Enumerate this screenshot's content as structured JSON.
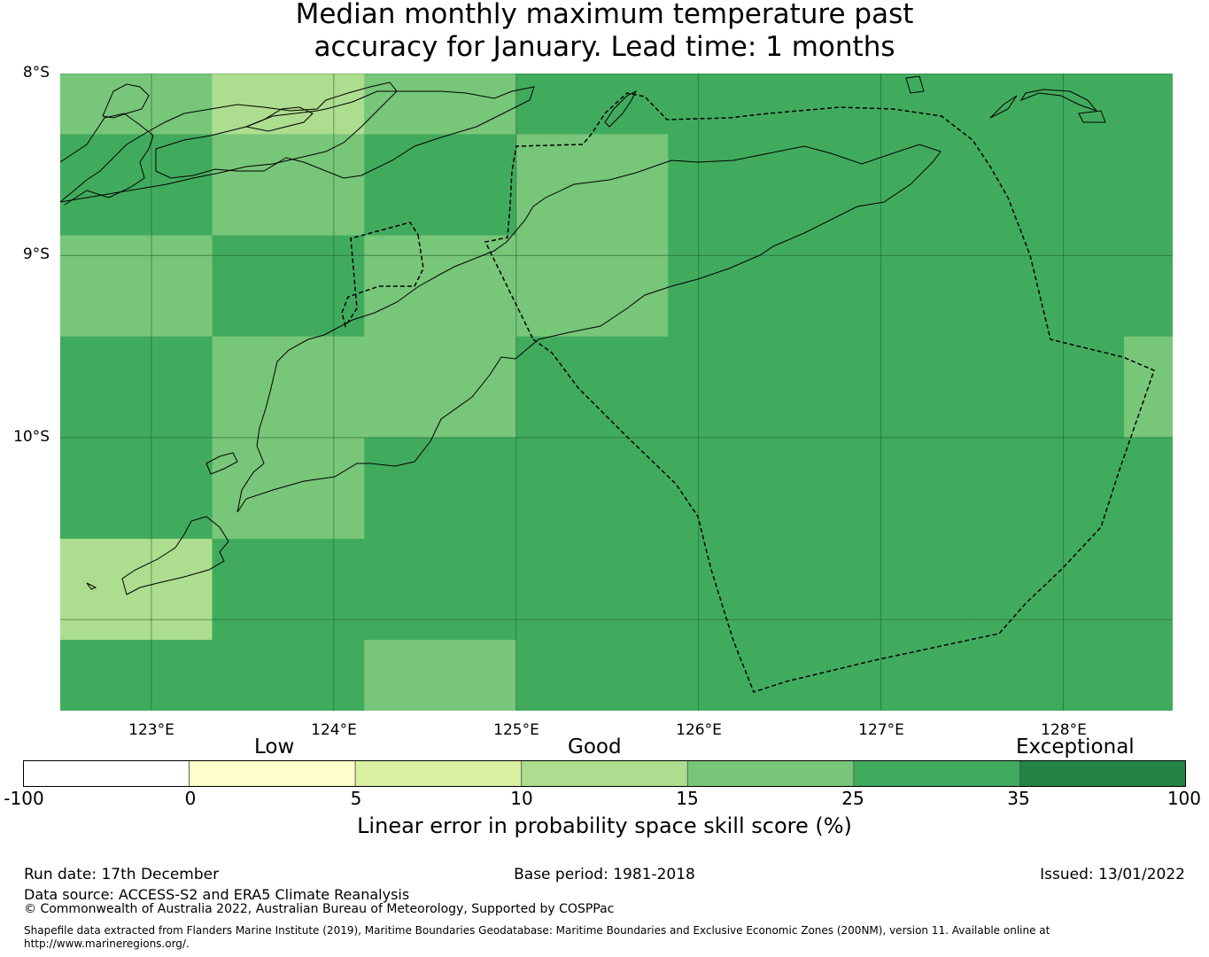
{
  "title": {
    "line1": "Median monthly maximum temperature past",
    "line2": "accuracy for January. Lead time: 1 months"
  },
  "map": {
    "lat_labels": [
      "8°S",
      "9°S",
      "10°S"
    ],
    "lon_labels": [
      "123°E",
      "124°E",
      "125°E",
      "126°E",
      "127°E",
      "128°E"
    ],
    "extent": {
      "lon_min": 122.5,
      "lon_max": 128.6,
      "lat_min": -11.5,
      "lat_max": -8.0
    },
    "grid_cell_deg": {
      "lon": 0.833,
      "lat": 0.556
    },
    "cell_lon_edges": [
      122.5,
      123.333,
      124.167,
      125.0,
      125.833,
      126.667,
      127.5,
      128.333,
      128.6
    ],
    "cell_lat_edges": [
      -8.0,
      -8.333,
      -8.889,
      -9.444,
      -10.0,
      -10.556,
      -11.111,
      -11.5
    ],
    "cell_classes": [
      [
        4,
        3,
        4,
        5,
        5,
        5,
        5,
        5
      ],
      [
        5,
        4,
        5,
        4,
        5,
        5,
        5,
        5
      ],
      [
        4,
        5,
        4,
        4,
        5,
        5,
        5,
        5
      ],
      [
        5,
        4,
        4,
        5,
        5,
        5,
        5,
        4
      ],
      [
        5,
        4,
        5,
        5,
        5,
        5,
        5,
        5
      ],
      [
        3,
        5,
        5,
        5,
        5,
        5,
        5,
        5
      ],
      [
        5,
        5,
        4,
        5,
        5,
        5,
        5,
        5
      ]
    ]
  },
  "colorbar": {
    "category_labels": [
      "Low",
      "Good",
      "Exceptional"
    ],
    "ticks": [
      "-100",
      "0",
      "5",
      "10",
      "15",
      "25",
      "35",
      "100"
    ],
    "colors": [
      "#ffffff",
      "#ffffcc",
      "#d9f0a3",
      "#addd8e",
      "#78c679",
      "#41ab5d",
      "#238443"
    ],
    "title": "Linear error in probability space skill score (%)"
  },
  "footer": {
    "run_date": "Run date: 17th December",
    "base_period": "Base period: 1981-2018",
    "issued": "Issued: 13/01/2022",
    "data_source": "Data source: ACCESS-S2 and ERA5 Climate Reanalysis",
    "copyright": "© Commonwealth of Australia 2022, Australian Bureau of Meteorology, Supported by COSPPac",
    "shapefile_line1": "Shapefile data extracted from Flanders Marine Institute (2019), Maritime Boundaries Geodatabase: Maritime Boundaries and Exclusive Economic Zones (200NM), version 11. Available online at",
    "shapefile_line2": "http://www.marineregions.org/."
  }
}
